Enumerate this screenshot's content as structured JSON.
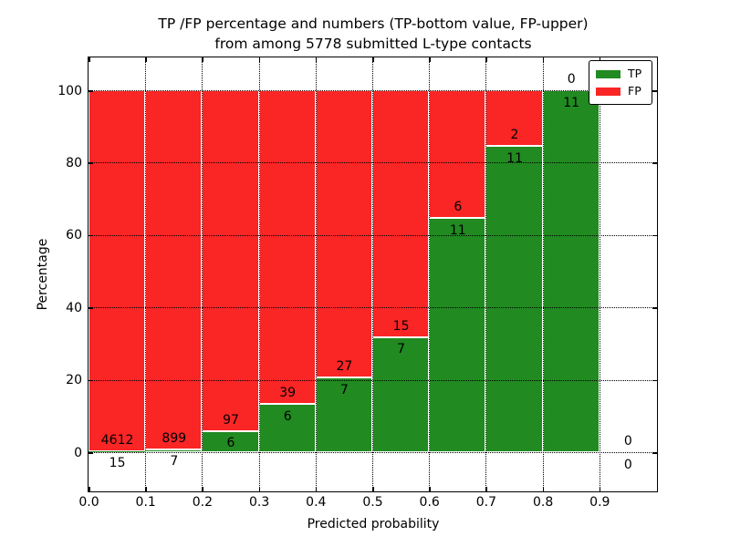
{
  "title": {
    "line1": "TP /FP percentage and numbers (TP-bottom value, FP-upper)",
    "line2": "from among 5778 submitted L-type contacts"
  },
  "chart_data": {
    "type": "bar",
    "stacked": true,
    "normalized_to": "100 percent per bin (bars show TP share bottom, FP share top)",
    "title": "TP /FP percentage and numbers (TP-bottom value, FP-upper)\nfrom among 5778 submitted L-type contacts",
    "xlabel": "Predicted probability",
    "ylabel": "Percentage",
    "bin_width": 0.1,
    "categories": [
      "0.0-0.1",
      "0.1-0.2",
      "0.2-0.3",
      "0.3-0.4",
      "0.4-0.5",
      "0.5-0.6",
      "0.6-0.7",
      "0.7-0.8",
      "0.8-0.9",
      "0.9-1.0"
    ],
    "series": [
      {
        "name": "TP",
        "color": "#218a21",
        "counts": [
          15,
          7,
          6,
          6,
          7,
          7,
          11,
          11,
          11,
          0
        ]
      },
      {
        "name": "FP",
        "color": "#fa2525",
        "counts": [
          4612,
          899,
          97,
          39,
          27,
          15,
          6,
          2,
          0,
          0
        ]
      }
    ],
    "tp_percent_of_bin": [
      0.32,
      0.77,
      5.83,
      13.33,
      20.59,
      31.82,
      64.71,
      84.62,
      100.0,
      null
    ],
    "x_tick_labels": [
      "0.0",
      "0.1",
      "0.2",
      "0.3",
      "0.4",
      "0.5",
      "0.6",
      "0.7",
      "0.8",
      "0.9"
    ],
    "y_tick_labels": [
      "0",
      "20",
      "40",
      "60",
      "80",
      "100"
    ],
    "y_ticks": [
      0,
      20,
      40,
      60,
      80,
      100
    ],
    "xlim": [
      0.0,
      1.0
    ],
    "ylim": [
      -10.8,
      109.3
    ],
    "grid": "dotted black, both axes",
    "legend_position": "upper right"
  }
}
